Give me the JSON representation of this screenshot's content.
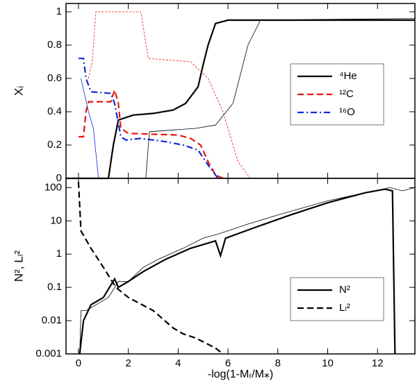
{
  "chart_data": [
    {
      "type": "line",
      "ylabel": "Xᵢ",
      "xlim": [
        -0.5,
        13.5
      ],
      "ylim": [
        0,
        1.05
      ],
      "yticks": [
        0,
        0.2,
        0.4,
        0.6,
        0.8,
        1
      ],
      "legend": "center right",
      "series": [
        {
          "name": "⁴He",
          "color": "#000000",
          "linestyle": "solid",
          "weight": "thick",
          "x": [
            -0.5,
            1.2,
            1.4,
            1.6,
            2.2,
            3.0,
            3.8,
            4.3,
            4.8,
            5.0,
            5.2,
            5.5,
            6.0,
            13.5
          ],
          "values": [
            0,
            0,
            0.2,
            0.35,
            0.38,
            0.39,
            0.41,
            0.45,
            0.55,
            0.68,
            0.8,
            0.93,
            0.95,
            0.95
          ]
        },
        {
          "name": "¹²C",
          "color": "#e8140c",
          "linestyle": "dashed",
          "weight": "thick",
          "x": [
            0,
            0.2,
            0.3,
            0.4,
            1.3,
            1.45,
            1.6,
            1.7,
            2.0,
            4.0,
            4.5,
            4.9,
            5.2,
            5.5,
            5.8
          ],
          "values": [
            0.25,
            0.25,
            0.4,
            0.46,
            0.46,
            0.53,
            0.45,
            0.3,
            0.27,
            0.26,
            0.24,
            0.2,
            0.1,
            0.02,
            0
          ]
        },
        {
          "name": "¹⁶O",
          "color": "#1028d8",
          "linestyle": "dashdot",
          "weight": "thick",
          "x": [
            0,
            0.2,
            0.3,
            0.5,
            1.3,
            1.45,
            1.7,
            1.9,
            2.5,
            3.5,
            4.2,
            4.8,
            5.2,
            5.6
          ],
          "values": [
            0.72,
            0.72,
            0.6,
            0.52,
            0.51,
            0.45,
            0.25,
            0.23,
            0.24,
            0.22,
            0.2,
            0.17,
            0.08,
            0
          ]
        },
        {
          "color": "#e8140c",
          "linestyle": "dashed",
          "weight": "thin",
          "x": [
            0.4,
            0.55,
            0.7,
            2.5,
            2.8,
            4.5,
            5.2,
            5.8,
            6.4,
            6.9
          ],
          "values": [
            0.6,
            0.7,
            1.0,
            1.0,
            0.72,
            0.7,
            0.6,
            0.4,
            0.1,
            0
          ]
        },
        {
          "color": "#000000",
          "linestyle": "solid",
          "weight": "thin",
          "x": [
            -0.5,
            2.7,
            2.85,
            4.7,
            5.5,
            6.2,
            6.8,
            7.3,
            13.5
          ],
          "values": [
            0,
            0,
            0.28,
            0.3,
            0.32,
            0.45,
            0.8,
            0.95,
            0.96
          ]
        },
        {
          "color": "#1028d8",
          "linestyle": "solid",
          "weight": "thin",
          "x": [
            0.1,
            0.4,
            0.6,
            0.8
          ],
          "values": [
            0.6,
            0.4,
            0.3,
            0
          ]
        }
      ]
    },
    {
      "type": "line",
      "ylabel": "N², Lₗ²",
      "xlabel": "-log(1-Mᵣ/M⁎)",
      "log_y": true,
      "xlim": [
        -0.5,
        13.5
      ],
      "ylim": [
        0.001,
        190
      ],
      "xticks": [
        0,
        2,
        4,
        6,
        8,
        10,
        12
      ],
      "yticks": [
        0.001,
        0.01,
        0.1,
        1,
        10,
        100
      ],
      "legend": "lower right",
      "series": [
        {
          "name": "N²",
          "color": "#000000",
          "linestyle": "solid",
          "weight": "thick",
          "x": [
            0.05,
            0.2,
            0.5,
            1.0,
            1.45,
            1.6,
            2.0,
            2.6,
            3.5,
            4.5,
            5.5,
            5.7,
            5.9,
            7.0,
            8.5,
            10,
            11.5,
            12.3,
            12.6,
            12.7
          ],
          "values": [
            0.001,
            0.01,
            0.03,
            0.05,
            0.18,
            0.1,
            0.15,
            0.3,
            0.7,
            1.5,
            2.5,
            0.9,
            3,
            6,
            15,
            35,
            70,
            90,
            80,
            0.001
          ]
        },
        {
          "color": "#000000",
          "linestyle": "solid",
          "weight": "thin",
          "x": [
            0.05,
            0.1,
            0.3,
            1.2,
            1.6,
            2.0,
            2.6,
            3.2,
            4.2,
            5.0,
            5.6,
            6.8,
            8.0,
            10,
            11.5,
            12.5,
            13.0,
            13.5
          ],
          "values": [
            0.001,
            0.02,
            0.02,
            0.05,
            0.15,
            0.15,
            0.4,
            0.7,
            1.5,
            3,
            4,
            8,
            15,
            40,
            70,
            100,
            80,
            100
          ]
        },
        {
          "name": "Lₗ²",
          "color": "#000000",
          "linestyle": "dashed",
          "weight": "thick",
          "x": [
            0,
            0.1,
            0.5,
            1.0,
            1.5,
            2.0,
            3.0,
            3.8,
            4.2,
            4.7,
            5.5,
            5.8
          ],
          "values": [
            150,
            5,
            1.5,
            0.4,
            0.1,
            0.05,
            0.02,
            0.006,
            0.004,
            0.003,
            0.0015,
            0.001
          ]
        }
      ]
    }
  ]
}
